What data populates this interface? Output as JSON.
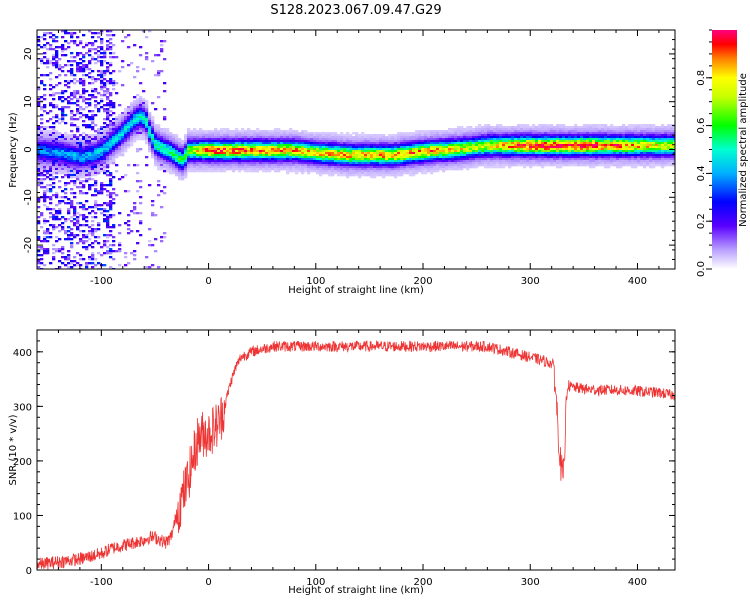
{
  "figure_title": "S128.2023.067.09.47.G29",
  "chart_data": [
    {
      "type": "heatmap",
      "title": "S128.2023.067.09.47.G29",
      "xlabel": "Height of straight line (km)",
      "ylabel": "Frequency (Hz)",
      "xlim": [
        -160,
        435
      ],
      "ylim": [
        -25,
        25
      ],
      "xticks": [
        -100,
        0,
        100,
        200,
        300,
        400
      ],
      "yticks": [
        -20,
        -10,
        0,
        10,
        20
      ],
      "colorbar": {
        "label": "Normalized spectral amplitude",
        "range": [
          0,
          1
        ],
        "ticks": [
          0.0,
          0.2,
          0.4,
          0.6,
          0.8
        ],
        "colormap": [
          "#ffffff",
          "#5a00ff",
          "#0000ff",
          "#00e5ff",
          "#00ff00",
          "#ffff00",
          "#ff0000",
          "#ff00a0"
        ]
      },
      "ridge_frequency_hz": {
        "x": [
          -160,
          -140,
          -120,
          -110,
          -100,
          -90,
          -80,
          -70,
          -65,
          -60,
          -55,
          -50,
          -45,
          -40,
          -35,
          -30,
          -25,
          -20,
          -10,
          0,
          50,
          80,
          100,
          130,
          150,
          170,
          190,
          210,
          220,
          240,
          260,
          300,
          350,
          400,
          435
        ],
        "y": [
          0,
          -0.5,
          -1.5,
          -1,
          0,
          2,
          4,
          6.5,
          7,
          6.5,
          3,
          1,
          0.5,
          0,
          -0.5,
          -1.5,
          -2,
          0,
          0,
          0,
          0,
          0,
          -0.5,
          -1,
          -1,
          -1,
          -0.5,
          0,
          0,
          0.5,
          1,
          1,
          1,
          1,
          1
        ]
      },
      "ridge_amplitude": {
        "x": [
          -160,
          -120,
          -80,
          -60,
          -30,
          0,
          100,
          200,
          250,
          300,
          350,
          400,
          435
        ],
        "a": [
          0.25,
          0.3,
          0.35,
          0.4,
          0.45,
          0.8,
          0.7,
          0.75,
          0.6,
          0.85,
          0.85,
          0.7,
          0.6
        ]
      }
    },
    {
      "type": "line",
      "xlabel": "Height of straight line (km)",
      "ylabel": "SNR (10 * v/v)",
      "xlim": [
        -160,
        435
      ],
      "ylim": [
        0,
        440
      ],
      "xticks": [
        -100,
        0,
        100,
        200,
        300,
        400
      ],
      "yticks": [
        0,
        100,
        200,
        300,
        400
      ],
      "color": "#ee3333",
      "series": [
        {
          "name": "SNR",
          "x": [
            -160,
            -140,
            -120,
            -110,
            -100,
            -90,
            -80,
            -70,
            -60,
            -55,
            -50,
            -45,
            -40,
            -35,
            -30,
            -25,
            -20,
            -15,
            -10,
            -5,
            0,
            5,
            10,
            15,
            20,
            25,
            30,
            40,
            50,
            60,
            70,
            80,
            90,
            100,
            120,
            140,
            160,
            180,
            200,
            220,
            240,
            260,
            270,
            280,
            290,
            300,
            310,
            318,
            322,
            325,
            328,
            330,
            332,
            333,
            335,
            338,
            340,
            350,
            360,
            380,
            400,
            420,
            435
          ],
          "y": [
            10,
            15,
            20,
            25,
            30,
            40,
            45,
            50,
            55,
            60,
            60,
            55,
            50,
            60,
            100,
            130,
            160,
            200,
            240,
            250,
            250,
            260,
            270,
            300,
            340,
            370,
            390,
            400,
            405,
            410,
            410,
            410,
            410,
            410,
            410,
            410,
            410,
            410,
            410,
            410,
            410,
            410,
            405,
            400,
            395,
            390,
            385,
            380,
            375,
            290,
            200,
            175,
            175,
            300,
            340,
            335,
            335,
            332,
            330,
            330,
            328,
            325,
            320
          ]
        }
      ]
    }
  ]
}
